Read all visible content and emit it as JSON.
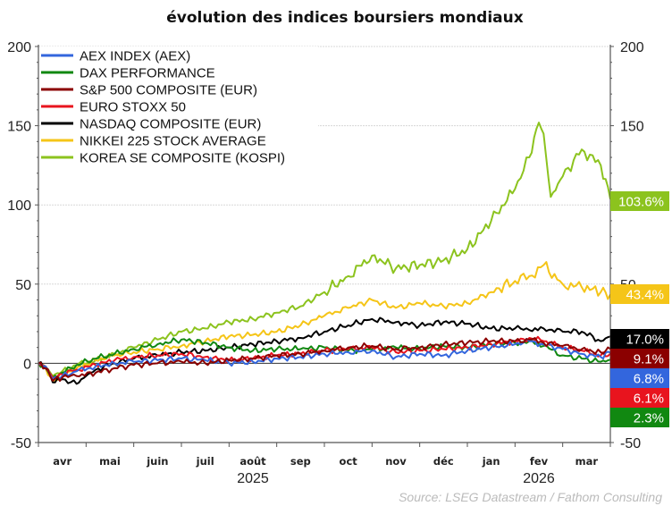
{
  "chart_data": {
    "type": "line",
    "title": "évolution des indices boursiers mondiaux",
    "xlabel": "",
    "ylabel": "",
    "ylim": [
      -50,
      200
    ],
    "yticks": [
      -50,
      0,
      50,
      100,
      150,
      200
    ],
    "ytick_labels": [
      "-50",
      "0",
      "50",
      "100",
      "150",
      "200"
    ],
    "grid": true,
    "legend_position": "top-left",
    "x_months": [
      "avr",
      "mai",
      "juin",
      "juil",
      "août",
      "sep",
      "oct",
      "nov",
      "déc",
      "jan",
      "fev",
      "mar"
    ],
    "x_years": [
      {
        "label": "2025",
        "month_index": 4
      },
      {
        "label": "2026",
        "month_index": 10
      }
    ],
    "x_range_months": [
      0,
      12
    ],
    "source": "Source: LSEG Datastream / Fathom Consulting",
    "series": [
      {
        "name": "AEX INDEX (AEX)",
        "color": "#3366dd",
        "end_label": "6.8%",
        "x": [
          0,
          0.15,
          0.3,
          0.5,
          0.8,
          1.2,
          1.6,
          2,
          2.5,
          3,
          3.5,
          4,
          4.5,
          5,
          5.5,
          6,
          6.5,
          7,
          7.5,
          8,
          8.5,
          9,
          9.5,
          10,
          10.3,
          10.6,
          11,
          11.4,
          11.8,
          12
        ],
        "values": [
          0,
          -2,
          -10,
          -8,
          -5,
          -2,
          0,
          1,
          2,
          3,
          2,
          0,
          1,
          3,
          4,
          6,
          7,
          8,
          4,
          6,
          5,
          8,
          10,
          12,
          14,
          12,
          9,
          6,
          4,
          6.8
        ]
      },
      {
        "name": "DAX PERFORMANCE",
        "color": "#118811",
        "end_label": "2.3%",
        "x": [
          0,
          0.15,
          0.3,
          0.5,
          0.8,
          1.2,
          1.6,
          2,
          2.5,
          3,
          3.5,
          4,
          4.5,
          5,
          5.5,
          6,
          6.5,
          7,
          7.5,
          8,
          8.5,
          9,
          9.5,
          10,
          10.3,
          10.6,
          11,
          11.4,
          11.8,
          12
        ],
        "values": [
          0,
          -2,
          -9,
          -6,
          -1,
          3,
          6,
          9,
          12,
          15,
          13,
          10,
          8,
          9,
          9,
          10,
          8,
          9,
          10,
          9,
          11,
          10,
          12,
          13,
          14,
          11,
          5,
          3,
          1,
          2.3
        ]
      },
      {
        "name": "S&P 500 COMPOSITE (EUR)",
        "color": "#8b0000",
        "end_label": "9.1%",
        "x": [
          0,
          0.15,
          0.3,
          0.5,
          0.8,
          1.2,
          1.6,
          2,
          2.5,
          3,
          3.5,
          4,
          4.5,
          5,
          5.5,
          6,
          6.5,
          7,
          7.5,
          8,
          8.5,
          9,
          9.5,
          10,
          10.3,
          10.6,
          11,
          11.4,
          11.8,
          12
        ],
        "values": [
          0,
          -3,
          -11,
          -9,
          -8,
          -6,
          -3,
          -1,
          0,
          1,
          0,
          2,
          3,
          5,
          6,
          8,
          10,
          11,
          9,
          10,
          12,
          13,
          14,
          14,
          15,
          13,
          11,
          9,
          7,
          9.1
        ]
      },
      {
        "name": "EURO STOXX 50",
        "color": "#e8141e",
        "end_label": "6.1%",
        "x": [
          0,
          0.15,
          0.3,
          0.5,
          0.8,
          1.2,
          1.6,
          2,
          2.5,
          3,
          3.5,
          4,
          4.5,
          5,
          5.5,
          6,
          6.5,
          7,
          7.5,
          8,
          8.5,
          9,
          9.5,
          10,
          10.3,
          10.6,
          11,
          11.4,
          11.8,
          12
        ],
        "values": [
          0,
          -2,
          -9,
          -7,
          -4,
          -1,
          2,
          4,
          5,
          6,
          4,
          2,
          3,
          5,
          6,
          8,
          9,
          10,
          7,
          8,
          9,
          10,
          12,
          14,
          16,
          14,
          10,
          8,
          5,
          6.1
        ]
      },
      {
        "name": "NASDAQ COMPOSITE (EUR)",
        "color": "#000000",
        "end_label": "17.0%",
        "x": [
          0,
          0.15,
          0.3,
          0.5,
          0.8,
          1.0,
          1.2,
          1.6,
          2,
          2.5,
          3,
          3.5,
          4,
          4.5,
          5,
          5.5,
          6,
          6.5,
          7,
          7.5,
          8,
          8.5,
          9,
          9.5,
          10,
          10.3,
          10.6,
          11,
          11.4,
          11.8,
          12
        ],
        "values": [
          0,
          -3,
          -12,
          -10,
          -13,
          -8,
          -4,
          0,
          3,
          5,
          7,
          8,
          10,
          12,
          14,
          16,
          20,
          24,
          28,
          26,
          24,
          26,
          25,
          22,
          22,
          21,
          22,
          20,
          20,
          14,
          17
        ]
      },
      {
        "name": "NIKKEI 225 STOCK AVERAGE",
        "color": "#f5c518",
        "end_label": "43.4%",
        "x": [
          0,
          0.15,
          0.3,
          0.5,
          0.8,
          1.2,
          1.6,
          2,
          2.5,
          3,
          3.5,
          4,
          4.5,
          5,
          5.5,
          6,
          6.5,
          7,
          7.5,
          8,
          8.5,
          9,
          9.5,
          10,
          10.3,
          10.6,
          11,
          11.4,
          11.8,
          12
        ],
        "values": [
          0,
          -3,
          -11,
          -7,
          -3,
          2,
          5,
          7,
          9,
          11,
          14,
          17,
          18,
          20,
          24,
          30,
          35,
          40,
          35,
          38,
          36,
          38,
          45,
          52,
          55,
          62,
          50,
          48,
          45,
          43.4
        ]
      },
      {
        "name": "KOREA SE COMPOSITE (KOSPI)",
        "color": "#8cc31e",
        "end_label": "103.6%",
        "x": [
          0,
          0.15,
          0.3,
          0.5,
          0.8,
          1.2,
          1.6,
          2,
          2.5,
          3,
          3.5,
          4,
          4.5,
          5,
          5.5,
          6,
          6.5,
          7,
          7.5,
          8,
          8.5,
          9,
          9.5,
          10,
          10.3,
          10.5,
          10.6,
          10.75,
          11,
          11.4,
          11.8,
          12
        ],
        "values": [
          0,
          -2,
          -8,
          -5,
          -1,
          2,
          6,
          10,
          15,
          20,
          22,
          26,
          28,
          32,
          36,
          45,
          55,
          68,
          60,
          62,
          65,
          72,
          90,
          110,
          130,
          152,
          145,
          105,
          118,
          135,
          125,
          103.6
        ]
      }
    ]
  }
}
